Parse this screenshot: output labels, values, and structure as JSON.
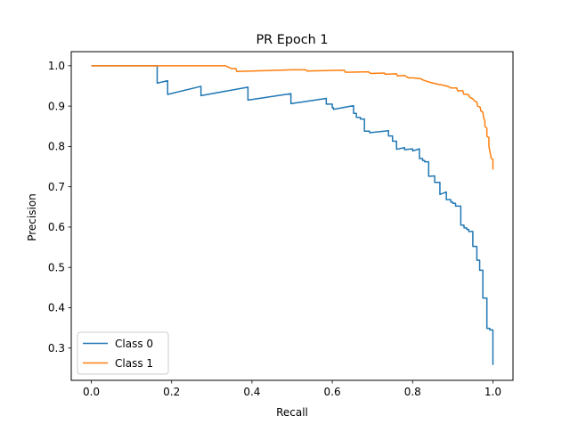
{
  "chart_data": {
    "type": "line",
    "title": "PR Epoch 1",
    "xlabel": "Recall",
    "ylabel": "Precision",
    "xlim": [
      -0.05,
      1.05
    ],
    "ylim": [
      0.22,
      1.035
    ],
    "xticks": [
      0.0,
      0.2,
      0.4,
      0.6,
      0.8,
      1.0
    ],
    "xtick_labels": [
      "0.0",
      "0.2",
      "0.4",
      "0.6",
      "0.8",
      "1.0"
    ],
    "yticks": [
      0.3,
      0.4,
      0.5,
      0.6,
      0.7,
      0.8,
      0.9,
      1.0
    ],
    "ytick_labels": [
      "0.3",
      "0.4",
      "0.5",
      "0.6",
      "0.7",
      "0.8",
      "0.9",
      "1.0"
    ],
    "grid": false,
    "legend_position": "lower-left",
    "series": [
      {
        "name": "Class 0",
        "color": "#1f77b4",
        "points": [
          [
            0.0,
            1.0
          ],
          [
            0.164,
            1.0
          ],
          [
            0.164,
            0.957
          ],
          [
            0.19,
            0.963
          ],
          [
            0.19,
            0.929
          ],
          [
            0.273,
            0.949
          ],
          [
            0.273,
            0.926
          ],
          [
            0.39,
            0.947
          ],
          [
            0.39,
            0.915
          ],
          [
            0.497,
            0.931
          ],
          [
            0.497,
            0.906
          ],
          [
            0.585,
            0.919
          ],
          [
            0.585,
            0.905
          ],
          [
            0.6,
            0.905
          ],
          [
            0.6,
            0.896
          ],
          [
            0.603,
            0.896
          ],
          [
            0.603,
            0.892
          ],
          [
            0.653,
            0.901
          ],
          [
            0.653,
            0.882
          ],
          [
            0.66,
            0.882
          ],
          [
            0.66,
            0.872
          ],
          [
            0.67,
            0.872
          ],
          [
            0.67,
            0.868
          ],
          [
            0.68,
            0.868
          ],
          [
            0.68,
            0.838
          ],
          [
            0.693,
            0.838
          ],
          [
            0.693,
            0.834
          ],
          [
            0.74,
            0.839
          ],
          [
            0.74,
            0.826
          ],
          [
            0.75,
            0.826
          ],
          [
            0.75,
            0.813
          ],
          [
            0.76,
            0.813
          ],
          [
            0.76,
            0.793
          ],
          [
            0.78,
            0.797
          ],
          [
            0.78,
            0.792
          ],
          [
            0.8,
            0.794
          ],
          [
            0.8,
            0.789
          ],
          [
            0.817,
            0.794
          ],
          [
            0.817,
            0.77
          ],
          [
            0.825,
            0.77
          ],
          [
            0.825,
            0.765
          ],
          [
            0.83,
            0.765
          ],
          [
            0.83,
            0.762
          ],
          [
            0.84,
            0.762
          ],
          [
            0.84,
            0.726
          ],
          [
            0.855,
            0.727
          ],
          [
            0.855,
            0.711
          ],
          [
            0.868,
            0.711
          ],
          [
            0.868,
            0.681
          ],
          [
            0.884,
            0.687
          ],
          [
            0.884,
            0.668
          ],
          [
            0.895,
            0.668
          ],
          [
            0.895,
            0.662
          ],
          [
            0.9,
            0.662
          ],
          [
            0.9,
            0.659
          ],
          [
            0.907,
            0.659
          ],
          [
            0.907,
            0.652
          ],
          [
            0.92,
            0.652
          ],
          [
            0.92,
            0.605
          ],
          [
            0.928,
            0.605
          ],
          [
            0.928,
            0.598
          ],
          [
            0.935,
            0.598
          ],
          [
            0.935,
            0.594
          ],
          [
            0.94,
            0.594
          ],
          [
            0.94,
            0.589
          ],
          [
            0.95,
            0.589
          ],
          [
            0.95,
            0.552
          ],
          [
            0.96,
            0.552
          ],
          [
            0.96,
            0.518
          ],
          [
            0.967,
            0.518
          ],
          [
            0.967,
            0.493
          ],
          [
            0.975,
            0.493
          ],
          [
            0.975,
            0.424
          ],
          [
            0.985,
            0.424
          ],
          [
            0.985,
            0.349
          ],
          [
            0.992,
            0.349
          ],
          [
            0.992,
            0.345
          ],
          [
            1.0,
            0.345
          ],
          [
            1.0,
            0.258
          ]
        ]
      },
      {
        "name": "Class 1",
        "color": "#ff7f0e",
        "points": [
          [
            0.0,
            1.0
          ],
          [
            0.335,
            1.0
          ],
          [
            0.34,
            0.997
          ],
          [
            0.35,
            0.993
          ],
          [
            0.36,
            0.993
          ],
          [
            0.362,
            0.986
          ],
          [
            0.4,
            0.987
          ],
          [
            0.5,
            0.99
          ],
          [
            0.535,
            0.99
          ],
          [
            0.537,
            0.987
          ],
          [
            0.63,
            0.989
          ],
          [
            0.633,
            0.984
          ],
          [
            0.69,
            0.985
          ],
          [
            0.695,
            0.981
          ],
          [
            0.73,
            0.982
          ],
          [
            0.732,
            0.979
          ],
          [
            0.76,
            0.98
          ],
          [
            0.762,
            0.975
          ],
          [
            0.78,
            0.976
          ],
          [
            0.79,
            0.97
          ],
          [
            0.8,
            0.97
          ],
          [
            0.82,
            0.968
          ],
          [
            0.825,
            0.965
          ],
          [
            0.84,
            0.96
          ],
          [
            0.86,
            0.955
          ],
          [
            0.88,
            0.951
          ],
          [
            0.89,
            0.948
          ],
          [
            0.895,
            0.945
          ],
          [
            0.91,
            0.945
          ],
          [
            0.912,
            0.938
          ],
          [
            0.925,
            0.938
          ],
          [
            0.927,
            0.93
          ],
          [
            0.94,
            0.928
          ],
          [
            0.942,
            0.922
          ],
          [
            0.95,
            0.918
          ],
          [
            0.955,
            0.912
          ],
          [
            0.96,
            0.91
          ],
          [
            0.962,
            0.9
          ],
          [
            0.968,
            0.898
          ],
          [
            0.97,
            0.888
          ],
          [
            0.975,
            0.885
          ],
          [
            0.977,
            0.87
          ],
          [
            0.98,
            0.865
          ],
          [
            0.98,
            0.85
          ],
          [
            0.985,
            0.845
          ],
          [
            0.985,
            0.825
          ],
          [
            0.99,
            0.822
          ],
          [
            0.99,
            0.8
          ],
          [
            0.994,
            0.78
          ],
          [
            0.996,
            0.77
          ],
          [
            1.0,
            0.768
          ],
          [
            1.0,
            0.743
          ]
        ]
      }
    ]
  }
}
